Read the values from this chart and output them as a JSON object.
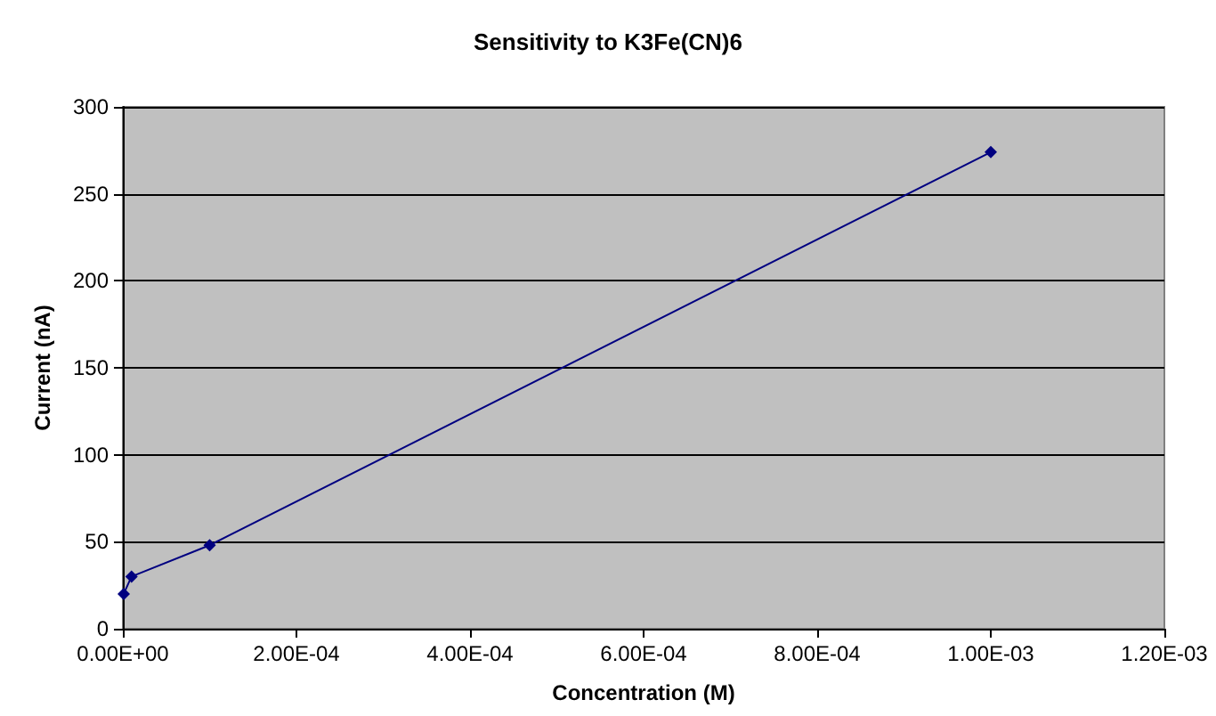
{
  "chart_data": {
    "type": "line",
    "title": "Sensitivity to K3Fe(CN)6",
    "xlabel": "Concentration (M)",
    "ylabel": "Current (nA)",
    "x": [
      1e-06,
      1e-05,
      0.0001,
      0.001
    ],
    "series": [
      {
        "color": "#000080",
        "values": [
          20,
          30,
          48,
          274
        ]
      }
    ],
    "xlim": [
      0,
      0.0012
    ],
    "xticks": [
      {
        "value": 0,
        "label": "0.00E+00"
      },
      {
        "value": 0.0002,
        "label": "2.00E-04"
      },
      {
        "value": 0.0004,
        "label": "4.00E-04"
      },
      {
        "value": 0.0006,
        "label": "6.00E-04"
      },
      {
        "value": 0.0008,
        "label": "8.00E-04"
      },
      {
        "value": 0.001,
        "label": "1.00E-03"
      },
      {
        "value": 0.0012,
        "label": "1.20E-03"
      }
    ],
    "ylim": [
      0,
      300
    ],
    "yticks": [
      0,
      50,
      100,
      150,
      200,
      250,
      300
    ],
    "grid": "y",
    "marker": "diamond",
    "line_style": "solid"
  }
}
